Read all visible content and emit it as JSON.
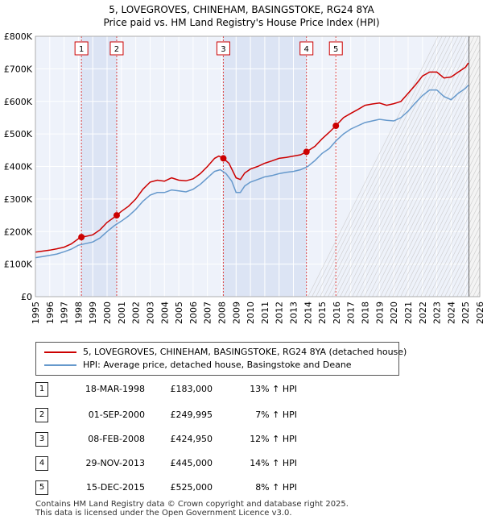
{
  "chart_data": {
    "type": "line",
    "title": "5, LOVEGROVES, CHINEHAM, BASINGSTOKE, RG24 8YA",
    "subtitle": "Price paid vs. HM Land Registry's House Price Index (HPI)",
    "xlim": [
      1995,
      2026
    ],
    "ylim": [
      0,
      800000
    ],
    "x_ticks": [
      1995,
      1996,
      1997,
      1998,
      1999,
      2000,
      2001,
      2002,
      2003,
      2004,
      2005,
      2006,
      2007,
      2008,
      2009,
      2010,
      2011,
      2012,
      2013,
      2014,
      2015,
      2016,
      2017,
      2018,
      2019,
      2020,
      2021,
      2022,
      2023,
      2024,
      2025,
      2026
    ],
    "y_ticks": [
      0,
      100000,
      200000,
      300000,
      400000,
      500000,
      600000,
      700000,
      800000
    ],
    "y_tick_labels": [
      "£0",
      "£100K",
      "£200K",
      "£300K",
      "£400K",
      "£500K",
      "£600K",
      "£700K",
      "£800K"
    ],
    "grid": true,
    "forecast_start": 2025.25,
    "series": [
      {
        "name": "5, LOVEGROVES, CHINEHAM, BASINGSTOKE, RG24 8YA (detached house)",
        "color": "#cc0000",
        "x": [
          1995.0,
          1995.5,
          1996.0,
          1996.5,
          1997.0,
          1997.5,
          1998.0,
          1998.21,
          1998.5,
          1999.0,
          1999.5,
          2000.0,
          2000.5,
          2000.67,
          2001.0,
          2001.5,
          2002.0,
          2002.5,
          2003.0,
          2003.5,
          2004.0,
          2004.5,
          2005.0,
          2005.5,
          2006.0,
          2006.5,
          2007.0,
          2007.5,
          2007.8,
          2008.11,
          2008.5,
          2009.0,
          2009.3,
          2009.6,
          2010.0,
          2010.5,
          2011.0,
          2011.5,
          2012.0,
          2012.5,
          2013.0,
          2013.5,
          2013.91,
          2014.5,
          2015.0,
          2015.5,
          2015.96,
          2016.5,
          2017.0,
          2017.5,
          2018.0,
          2018.5,
          2019.0,
          2019.5,
          2020.0,
          2020.5,
          2021.0,
          2021.5,
          2022.0,
          2022.5,
          2023.0,
          2023.5,
          2024.0,
          2024.5,
          2025.0,
          2025.2
        ],
        "y": [
          137000,
          140000,
          143000,
          147000,
          152000,
          162000,
          178000,
          183000,
          185000,
          190000,
          205000,
          228000,
          244000,
          249995,
          262000,
          278000,
          300000,
          330000,
          352000,
          358000,
          355000,
          365000,
          358000,
          356000,
          362000,
          378000,
          400000,
          425000,
          432000,
          424950,
          410000,
          365000,
          360000,
          380000,
          392000,
          400000,
          410000,
          417000,
          425000,
          428000,
          432000,
          436000,
          445000,
          462000,
          485000,
          505000,
          525000,
          550000,
          563000,
          575000,
          588000,
          592000,
          595000,
          588000,
          593000,
          600000,
          625000,
          650000,
          678000,
          690000,
          690000,
          672000,
          675000,
          690000,
          705000,
          718000
        ]
      },
      {
        "name": "HPI: Average price, detached house, Basingstoke and Deane",
        "color": "#6699cc",
        "x": [
          1995.0,
          1995.5,
          1996.0,
          1996.5,
          1997.0,
          1997.5,
          1998.0,
          1998.5,
          1999.0,
          1999.5,
          2000.0,
          2000.5,
          2001.0,
          2001.5,
          2002.0,
          2002.5,
          2003.0,
          2003.5,
          2004.0,
          2004.5,
          2005.0,
          2005.5,
          2006.0,
          2006.5,
          2007.0,
          2007.5,
          2007.9,
          2008.3,
          2008.7,
          2009.0,
          2009.3,
          2009.6,
          2010.0,
          2010.5,
          2011.0,
          2011.5,
          2012.0,
          2012.5,
          2013.0,
          2013.5,
          2014.0,
          2014.5,
          2015.0,
          2015.5,
          2016.0,
          2016.5,
          2017.0,
          2017.5,
          2018.0,
          2018.5,
          2019.0,
          2019.5,
          2020.0,
          2020.5,
          2021.0,
          2021.5,
          2022.0,
          2022.5,
          2023.0,
          2023.5,
          2024.0,
          2024.5,
          2025.0,
          2025.2
        ],
        "y": [
          120000,
          123000,
          127000,
          131000,
          138000,
          146000,
          158000,
          163000,
          168000,
          180000,
          200000,
          218000,
          232000,
          248000,
          268000,
          293000,
          312000,
          320000,
          320000,
          328000,
          325000,
          322000,
          330000,
          345000,
          365000,
          385000,
          390000,
          378000,
          355000,
          320000,
          320000,
          340000,
          352000,
          360000,
          368000,
          372000,
          378000,
          382000,
          385000,
          390000,
          400000,
          418000,
          440000,
          455000,
          480000,
          500000,
          515000,
          525000,
          535000,
          540000,
          545000,
          542000,
          540000,
          550000,
          570000,
          595000,
          618000,
          635000,
          635000,
          615000,
          605000,
          625000,
          640000,
          650000
        ]
      }
    ],
    "sales": [
      {
        "label": "1",
        "x": 1998.21,
        "y": 183000
      },
      {
        "label": "2",
        "x": 2000.67,
        "y": 249995
      },
      {
        "label": "3",
        "x": 2008.11,
        "y": 424950
      },
      {
        "label": "4",
        "x": 2013.91,
        "y": 445000
      },
      {
        "label": "5",
        "x": 2015.96,
        "y": 525000
      }
    ]
  },
  "legend": {
    "property_label": "5, LOVEGROVES, CHINEHAM, BASINGSTOKE, RG24 8YA (detached house)",
    "hpi_label": "HPI: Average price, detached house, Basingstoke and Deane"
  },
  "transactions": [
    {
      "num": "1",
      "date": "18-MAR-1998",
      "price": "£183,000",
      "hpi": "13% ↑ HPI"
    },
    {
      "num": "2",
      "date": "01-SEP-2000",
      "price": "£249,995",
      "hpi": "7% ↑ HPI"
    },
    {
      "num": "3",
      "date": "08-FEB-2008",
      "price": "£424,950",
      "hpi": "12% ↑ HPI"
    },
    {
      "num": "4",
      "date": "29-NOV-2013",
      "price": "£445,000",
      "hpi": "14% ↑ HPI"
    },
    {
      "num": "5",
      "date": "15-DEC-2015",
      "price": "£525,000",
      "hpi": "8% ↑ HPI"
    }
  ],
  "footer": {
    "line1": "Contains HM Land Registry data © Crown copyright and database right 2025.",
    "line2": "This data is licensed under the Open Government Licence v3.0."
  }
}
